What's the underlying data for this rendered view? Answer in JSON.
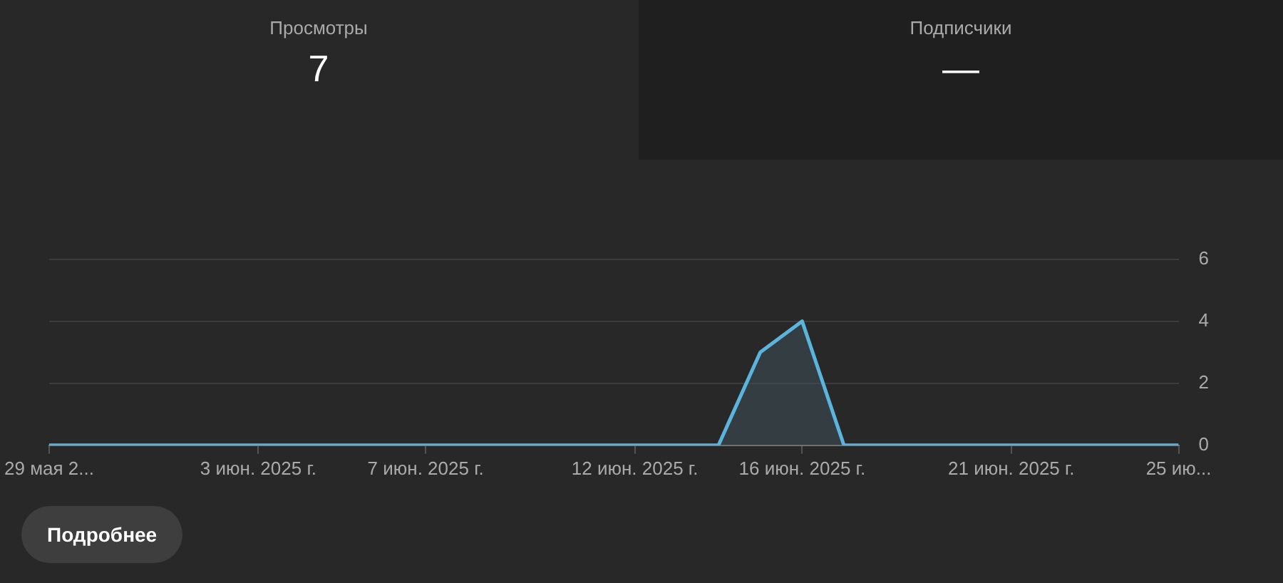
{
  "chart_data": {
    "type": "area",
    "annotations": [
      "Просмотры",
      "7",
      "Подписчики",
      "—",
      "Подробнее"
    ],
    "x": [
      "2025-05-29",
      "2025-05-30",
      "2025-05-31",
      "2025-06-01",
      "2025-06-02",
      "2025-06-03",
      "2025-06-04",
      "2025-06-05",
      "2025-06-06",
      "2025-06-07",
      "2025-06-08",
      "2025-06-09",
      "2025-06-10",
      "2025-06-11",
      "2025-06-12",
      "2025-06-13",
      "2025-06-14",
      "2025-06-15",
      "2025-06-16",
      "2025-06-17",
      "2025-06-18",
      "2025-06-19",
      "2025-06-20",
      "2025-06-21",
      "2025-06-22",
      "2025-06-23",
      "2025-06-24",
      "2025-06-25"
    ],
    "series": [
      {
        "color": "#5ab4dc",
        "values": [
          0,
          0,
          0,
          0,
          0,
          0,
          0,
          0,
          0,
          0,
          0,
          0,
          0,
          0,
          0,
          0,
          0,
          3,
          4,
          0,
          0,
          0,
          0,
          0,
          0,
          0,
          0,
          0
        ]
      }
    ],
    "xlim": [
      "2025-05-29",
      "2025-06-25"
    ],
    "xticks": [
      {
        "value": "2025-05-29",
        "label": "29 мая 2..."
      },
      {
        "value": "2025-06-03",
        "label": "3 июн. 2025 г."
      },
      {
        "value": "2025-06-07",
        "label": "7 июн. 2025 г."
      },
      {
        "value": "2025-06-12",
        "label": "12 июн. 2025 г."
      },
      {
        "value": "2025-06-16",
        "label": "16 июн. 2025 г."
      },
      {
        "value": "2025-06-21",
        "label": "21 июн. 2025 г."
      },
      {
        "value": "2025-06-25",
        "label": "25 ию..."
      }
    ],
    "ylim": [
      0,
      6
    ],
    "yticks": [
      0,
      2,
      4,
      6
    ],
    "grid": "y",
    "marker": "none",
    "line_style": "solid"
  }
}
